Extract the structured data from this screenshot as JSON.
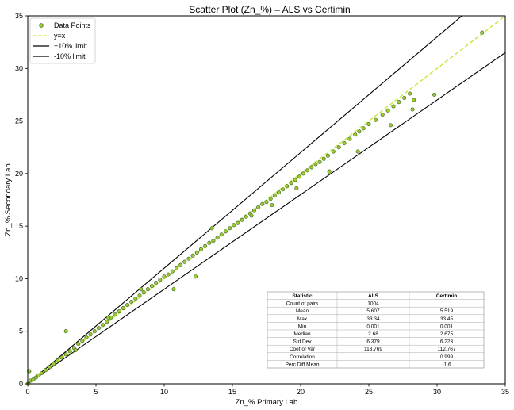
{
  "chart_data": {
    "type": "scatter",
    "title": "Scatter Plot (Zn_%) – ALS vs Certimin",
    "xlabel": "Zn_% Primary Lab",
    "ylabel": "Zn_% Secondary Lab",
    "xlim": [
      0,
      35
    ],
    "ylim": [
      0,
      35
    ],
    "xticks": [
      "0",
      "5",
      "10",
      "15",
      "20",
      "25",
      "30",
      "35"
    ],
    "yticks": [
      "0",
      "5",
      "10",
      "15",
      "20",
      "25",
      "30",
      "35"
    ],
    "grid": false,
    "legend_position": "top-left",
    "legend": [
      {
        "label": "Data Points",
        "kind": "marker",
        "color": "#9acd32",
        "edge": "#4a6a2a"
      },
      {
        "label": "y=x",
        "kind": "dashed",
        "color": "#c8e63c"
      },
      {
        "label": "+10% limit",
        "kind": "solid",
        "color": "#000000"
      },
      {
        "label": "-10% limit",
        "kind": "solid",
        "color": "#000000"
      }
    ],
    "series": [
      {
        "name": "Data Points",
        "color": "#9acd32",
        "edge": "#4a6a2a",
        "x": [
          0.0,
          0.1,
          0.2,
          0.4,
          0.6,
          0.8,
          1.0,
          1.3,
          1.6,
          1.9,
          2.2,
          2.5,
          2.8,
          3.1,
          3.4,
          3.7,
          4.0,
          4.3,
          4.6,
          4.9,
          5.2,
          5.5,
          5.8,
          6.1,
          6.4,
          6.7,
          7.0,
          7.3,
          7.6,
          7.9,
          8.2,
          8.5,
          8.8,
          9.1,
          9.4,
          9.7,
          10.0,
          10.3,
          10.6,
          10.9,
          11.2,
          11.5,
          11.8,
          12.1,
          12.4,
          12.7,
          13.0,
          13.3,
          13.6,
          13.9,
          14.2,
          14.5,
          14.8,
          15.1,
          15.4,
          15.7,
          16.0,
          16.3,
          16.6,
          16.9,
          17.2,
          17.5,
          17.8,
          18.1,
          18.4,
          18.7,
          19.0,
          19.3,
          19.6,
          19.9,
          20.2,
          20.5,
          20.8,
          21.1,
          21.4,
          21.7,
          22.0,
          22.4,
          22.8,
          23.2,
          23.6,
          24.0,
          24.3,
          24.6,
          25.0,
          25.5,
          26.0,
          26.4,
          26.8,
          27.2,
          27.6,
          28.0,
          28.3,
          29.8,
          33.3,
          2.8,
          0.1,
          10.7,
          12.3,
          16.4,
          17.9,
          19.7,
          24.2,
          26.6,
          28.2,
          22.1,
          13.5,
          8.3,
          5.9,
          3.5
        ],
        "y": [
          0.0,
          1.2,
          0.3,
          0.4,
          0.6,
          0.8,
          1.0,
          1.3,
          1.6,
          1.9,
          2.2,
          2.5,
          2.8,
          3.1,
          3.4,
          3.8,
          4.1,
          4.4,
          4.7,
          5.0,
          5.3,
          5.6,
          5.9,
          6.3,
          6.6,
          6.9,
          7.2,
          7.5,
          7.8,
          8.1,
          8.4,
          8.7,
          9.0,
          9.3,
          9.6,
          9.9,
          10.2,
          10.4,
          10.7,
          11.0,
          11.3,
          11.6,
          11.9,
          12.2,
          12.5,
          12.8,
          13.1,
          13.4,
          13.6,
          13.9,
          14.2,
          14.5,
          14.8,
          15.1,
          15.3,
          15.6,
          15.9,
          16.2,
          16.5,
          16.8,
          17.1,
          17.3,
          17.6,
          17.9,
          18.2,
          18.5,
          18.8,
          19.1,
          19.4,
          19.7,
          20.0,
          20.3,
          20.6,
          20.9,
          21.1,
          21.4,
          21.7,
          22.1,
          22.5,
          22.9,
          23.3,
          23.7,
          24.0,
          24.3,
          24.7,
          25.1,
          25.6,
          26.0,
          26.4,
          26.8,
          27.2,
          27.6,
          27.0,
          27.5,
          33.4,
          5.0,
          1.2,
          9.0,
          10.2,
          16.0,
          17.0,
          18.6,
          22.1,
          24.6,
          26.1,
          20.2,
          14.8,
          9.0,
          6.3,
          3.2
        ]
      }
    ],
    "lines": [
      {
        "name": "y=x",
        "slope": 1.0,
        "style": "dashed",
        "color": "#c8e63c"
      },
      {
        "name": "+10% limit",
        "slope": 1.1,
        "style": "solid",
        "color": "#000000"
      },
      {
        "name": "-10% limit",
        "slope": 0.9,
        "style": "solid",
        "color": "#000000"
      }
    ],
    "stats_table": {
      "headers": [
        "Statistic",
        "ALS",
        "Certimin"
      ],
      "rows": [
        [
          "Count of pairs",
          "1004",
          ""
        ],
        [
          "Mean",
          "5.607",
          "5.519"
        ],
        [
          "Max",
          "33.34",
          "33.45"
        ],
        [
          "Min",
          "0.001",
          "0.001"
        ],
        [
          "Median",
          "2.68",
          "2.675"
        ],
        [
          "Std Dev",
          "6.379",
          "6.223"
        ],
        [
          "Coef of Var",
          "113.769",
          "112.767"
        ],
        [
          "Correlation",
          "",
          "0.999"
        ],
        [
          "Perc Diff Mean",
          "",
          "-1.6"
        ]
      ]
    }
  }
}
